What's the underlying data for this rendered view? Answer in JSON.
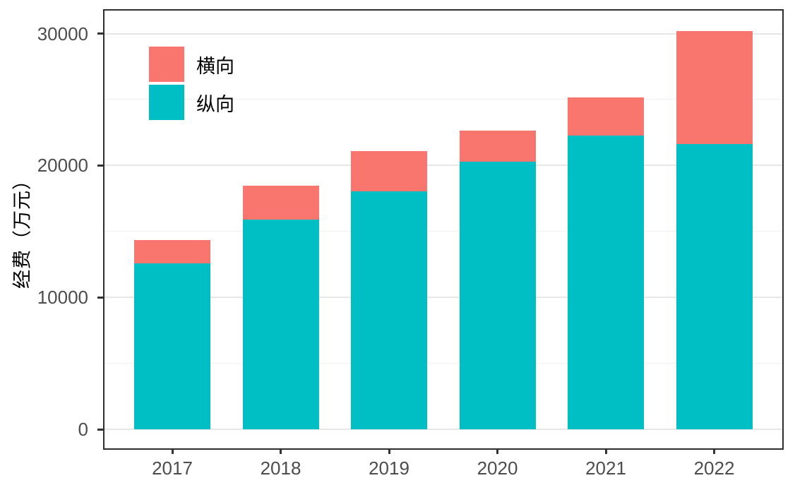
{
  "colors": {
    "background": "#FFFFFF",
    "panel_border": "#2E2E2E",
    "grid_major": "#E7E7E7",
    "grid_minor": "#F1F1F1",
    "axis_text": "#4D4D4D",
    "axis_title": "#000000",
    "tick_mark": "#333333",
    "legend_text": "#000000",
    "series_red": "#F8766D",
    "series_teal": "#00BFC4"
  },
  "chart_data": {
    "type": "bar",
    "stacked": true,
    "title": "",
    "xlabel": "",
    "ylabel": "经费（万元）",
    "categories": [
      "2017",
      "2018",
      "2019",
      "2020",
      "2021",
      "2022"
    ],
    "series": [
      {
        "name": "横向",
        "color": "#F8766D",
        "values": [
          1750,
          2550,
          3050,
          2370,
          2920,
          8530
        ]
      },
      {
        "name": "纵向",
        "color": "#00BFC4",
        "values": [
          12600,
          15900,
          18050,
          20270,
          22260,
          21650
        ]
      }
    ],
    "stack_order_bottom_to_top": [
      "纵向",
      "横向"
    ],
    "totals": [
      14350,
      18450,
      21100,
      22640,
      25180,
      30180
    ],
    "ylim": [
      0,
      31700
    ],
    "yticks": [
      0,
      10000,
      20000,
      30000
    ],
    "ytick_labels": [
      "0",
      "10000",
      "20000",
      "30000"
    ],
    "yminor_gridlines": [
      5000,
      15000,
      25000
    ],
    "grid": true,
    "legend_position": "inside-top-left",
    "legend_entries": [
      "横向",
      "纵向"
    ]
  }
}
